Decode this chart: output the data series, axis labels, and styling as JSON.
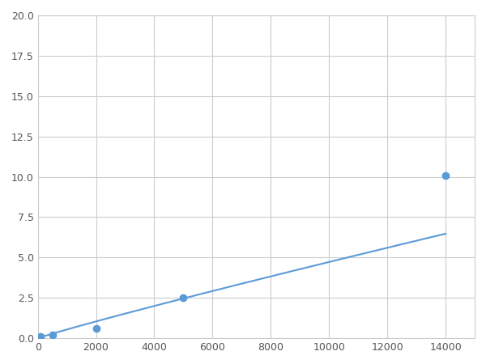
{
  "x": [
    100,
    500,
    2000,
    5000,
    14000
  ],
  "y": [
    0.1,
    0.2,
    0.6,
    2.5,
    10.1
  ],
  "line_color": "#5b9bd5",
  "marker_color": "#5b9bd5",
  "marker_size": 6,
  "line_width": 1.5,
  "xlim": [
    0,
    15000
  ],
  "ylim": [
    0,
    20
  ],
  "xticks": [
    0,
    2000,
    4000,
    6000,
    8000,
    10000,
    12000,
    14000
  ],
  "yticks": [
    0.0,
    2.5,
    5.0,
    7.5,
    10.0,
    12.5,
    15.0,
    17.5,
    20.0
  ],
  "grid_color": "#cccccc",
  "background_color": "#ffffff",
  "fig_facecolor": "#ffffff"
}
